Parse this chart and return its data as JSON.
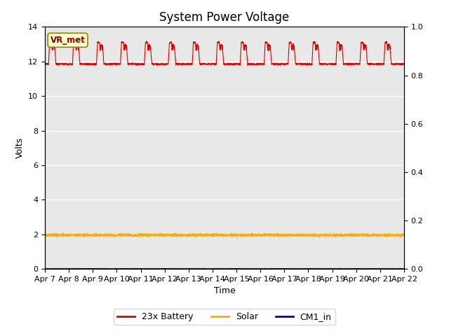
{
  "title": "System Power Voltage",
  "xlabel": "Time",
  "ylabel": "Volts",
  "annotation": "VR_met",
  "ylim_left": [
    0,
    14
  ],
  "ylim_right": [
    0.0,
    1.0
  ],
  "yticks_left": [
    0,
    2,
    4,
    6,
    8,
    10,
    12,
    14
  ],
  "yticks_right": [
    0.0,
    0.2,
    0.4,
    0.6,
    0.8,
    1.0
  ],
  "x_labels": [
    "Apr 7",
    "Apr 8",
    "Apr 9",
    "Apr 10",
    "Apr 11",
    "Apr 12",
    "Apr 13",
    "Apr 14",
    "Apr 15",
    "Apr 16",
    "Apr 17",
    "Apr 18",
    "Apr 19",
    "Apr 20",
    "Apr 21",
    "Apr 22"
  ],
  "background_color": "#e8e8e8",
  "battery_color": "#dd0000",
  "solar_color": "#ffaa00",
  "cm1_color": "#0000bb",
  "battery_base": 11.85,
  "battery_peak1": 13.1,
  "battery_peak2": 12.9,
  "solar_base": 1.95,
  "cm1_base": 0.01,
  "legend_entries": [
    "23x Battery",
    "Solar",
    "CM1_in"
  ],
  "legend_colors": [
    "#dd0000",
    "#ffaa00",
    "#0000bb"
  ],
  "title_fontsize": 12,
  "axis_fontsize": 9,
  "tick_fontsize": 8
}
